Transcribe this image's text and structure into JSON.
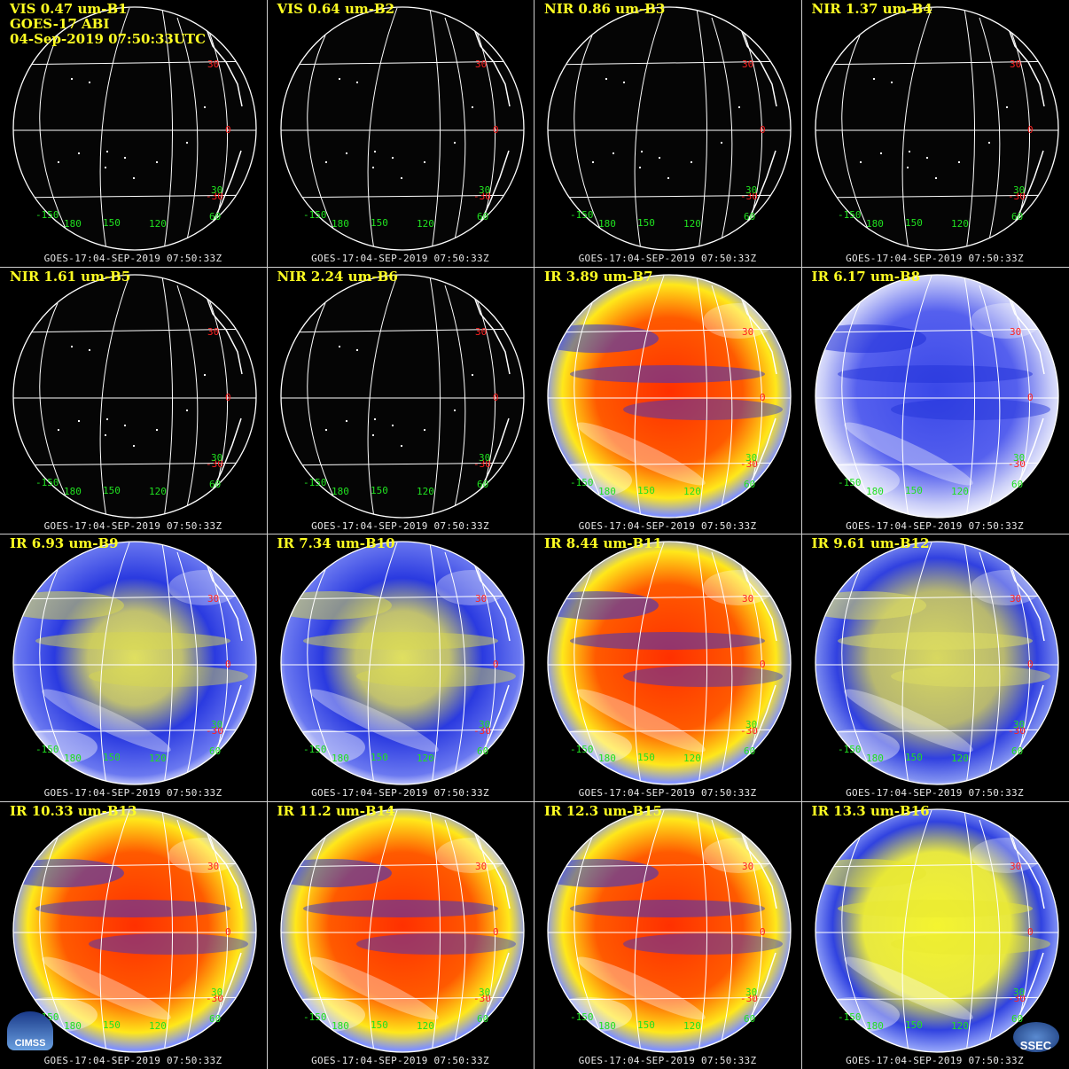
{
  "header": {
    "line1": "VIS 0.47 um-B1",
    "line2": "GOES-17 ABI",
    "line3": "04-Sep-2019 07:50:33UTC"
  },
  "panels": [
    {
      "label": "VIS 0.47 um-B1",
      "style": "vis"
    },
    {
      "label": "VIS 0.64 um-B2",
      "style": "vis"
    },
    {
      "label": "NIR 0.86 um-B3",
      "style": "vis"
    },
    {
      "label": "NIR 1.37 um-B4",
      "style": "vis"
    },
    {
      "label": "NIR 1.61 um-B5",
      "style": "vis"
    },
    {
      "label": "NIR 2.24 um-B6",
      "style": "vis"
    },
    {
      "label": "IR 3.89 um-B7",
      "style": "ir"
    },
    {
      "label": "IR 6.17 um-B8",
      "style": "wv-blue"
    },
    {
      "label": "IR 6.93 um-B9",
      "style": "wv"
    },
    {
      "label": "IR 7.34 um-B10",
      "style": "wv"
    },
    {
      "label": "IR 8.44 um-B11",
      "style": "ir"
    },
    {
      "label": "IR 9.61 um-B12",
      "style": "oz"
    },
    {
      "label": "IR 10.33 um-B13",
      "style": "ir"
    },
    {
      "label": "IR 11.2 um-B14",
      "style": "ir"
    },
    {
      "label": "IR 12.3 um-B15",
      "style": "ir"
    },
    {
      "label": "IR 13.3 um-B16",
      "style": "co2"
    }
  ],
  "timestamp": "GOES-17:04-SEP-2019 07:50:33Z",
  "lat_labels": [
    "30",
    "0",
    "-30",
    "30"
  ],
  "lon_labels": [
    "-150",
    "180",
    "150",
    "120",
    "60"
  ],
  "logos": {
    "left": "CIMSS",
    "right": "SSEC"
  },
  "colors": {
    "title": "#ffff22",
    "lat_label": "#ff2020",
    "lon_label": "#20e020",
    "grid": "#ffffff",
    "ir_warm": "#ff3a00",
    "ir_mid": "#ffe81a",
    "ir_cold": "#2030e0",
    "wv_dry": "#e0e060",
    "wv_moist": "#2a3ae0"
  }
}
